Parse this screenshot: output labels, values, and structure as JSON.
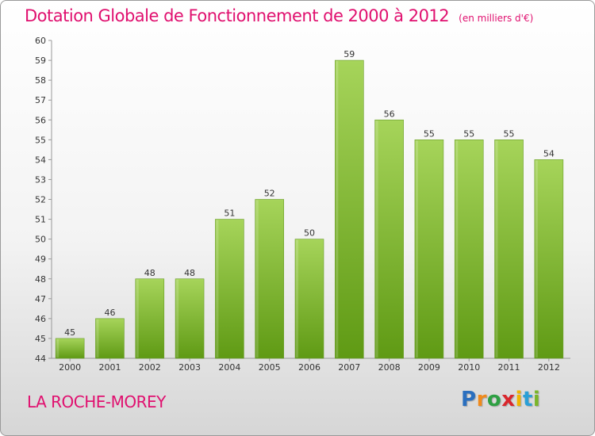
{
  "title": "Dotation Globale de Fonctionnement de 2000 à 2012",
  "unit": "(en milliers d'€)",
  "commune": "LA ROCHE-MOREY",
  "logo": {
    "letters": [
      "P",
      "r",
      "o",
      "x",
      "i",
      "t",
      "i"
    ],
    "colors": [
      "#2a6fbf",
      "#f08a1c",
      "#2ea043",
      "#d9262c",
      "#f0b400",
      "#2a9fd6",
      "#7ab52a"
    ]
  },
  "colors": {
    "accent": "#e0106f",
    "bar_top": "#a6d45a",
    "bar_bottom": "#5f9a14"
  },
  "chart_data": {
    "type": "bar",
    "categories": [
      "2000",
      "2001",
      "2002",
      "2003",
      "2004",
      "2005",
      "2006",
      "2007",
      "2008",
      "2009",
      "2010",
      "2011",
      "2012"
    ],
    "values": [
      45,
      46,
      48,
      48,
      51,
      52,
      50,
      59,
      56,
      55,
      55,
      55,
      54
    ],
    "ylim": [
      44,
      60
    ],
    "yticks": [
      44,
      45,
      46,
      47,
      48,
      49,
      50,
      51,
      52,
      53,
      54,
      55,
      56,
      57,
      58,
      59,
      60
    ],
    "grid": false,
    "data_labels": true
  }
}
